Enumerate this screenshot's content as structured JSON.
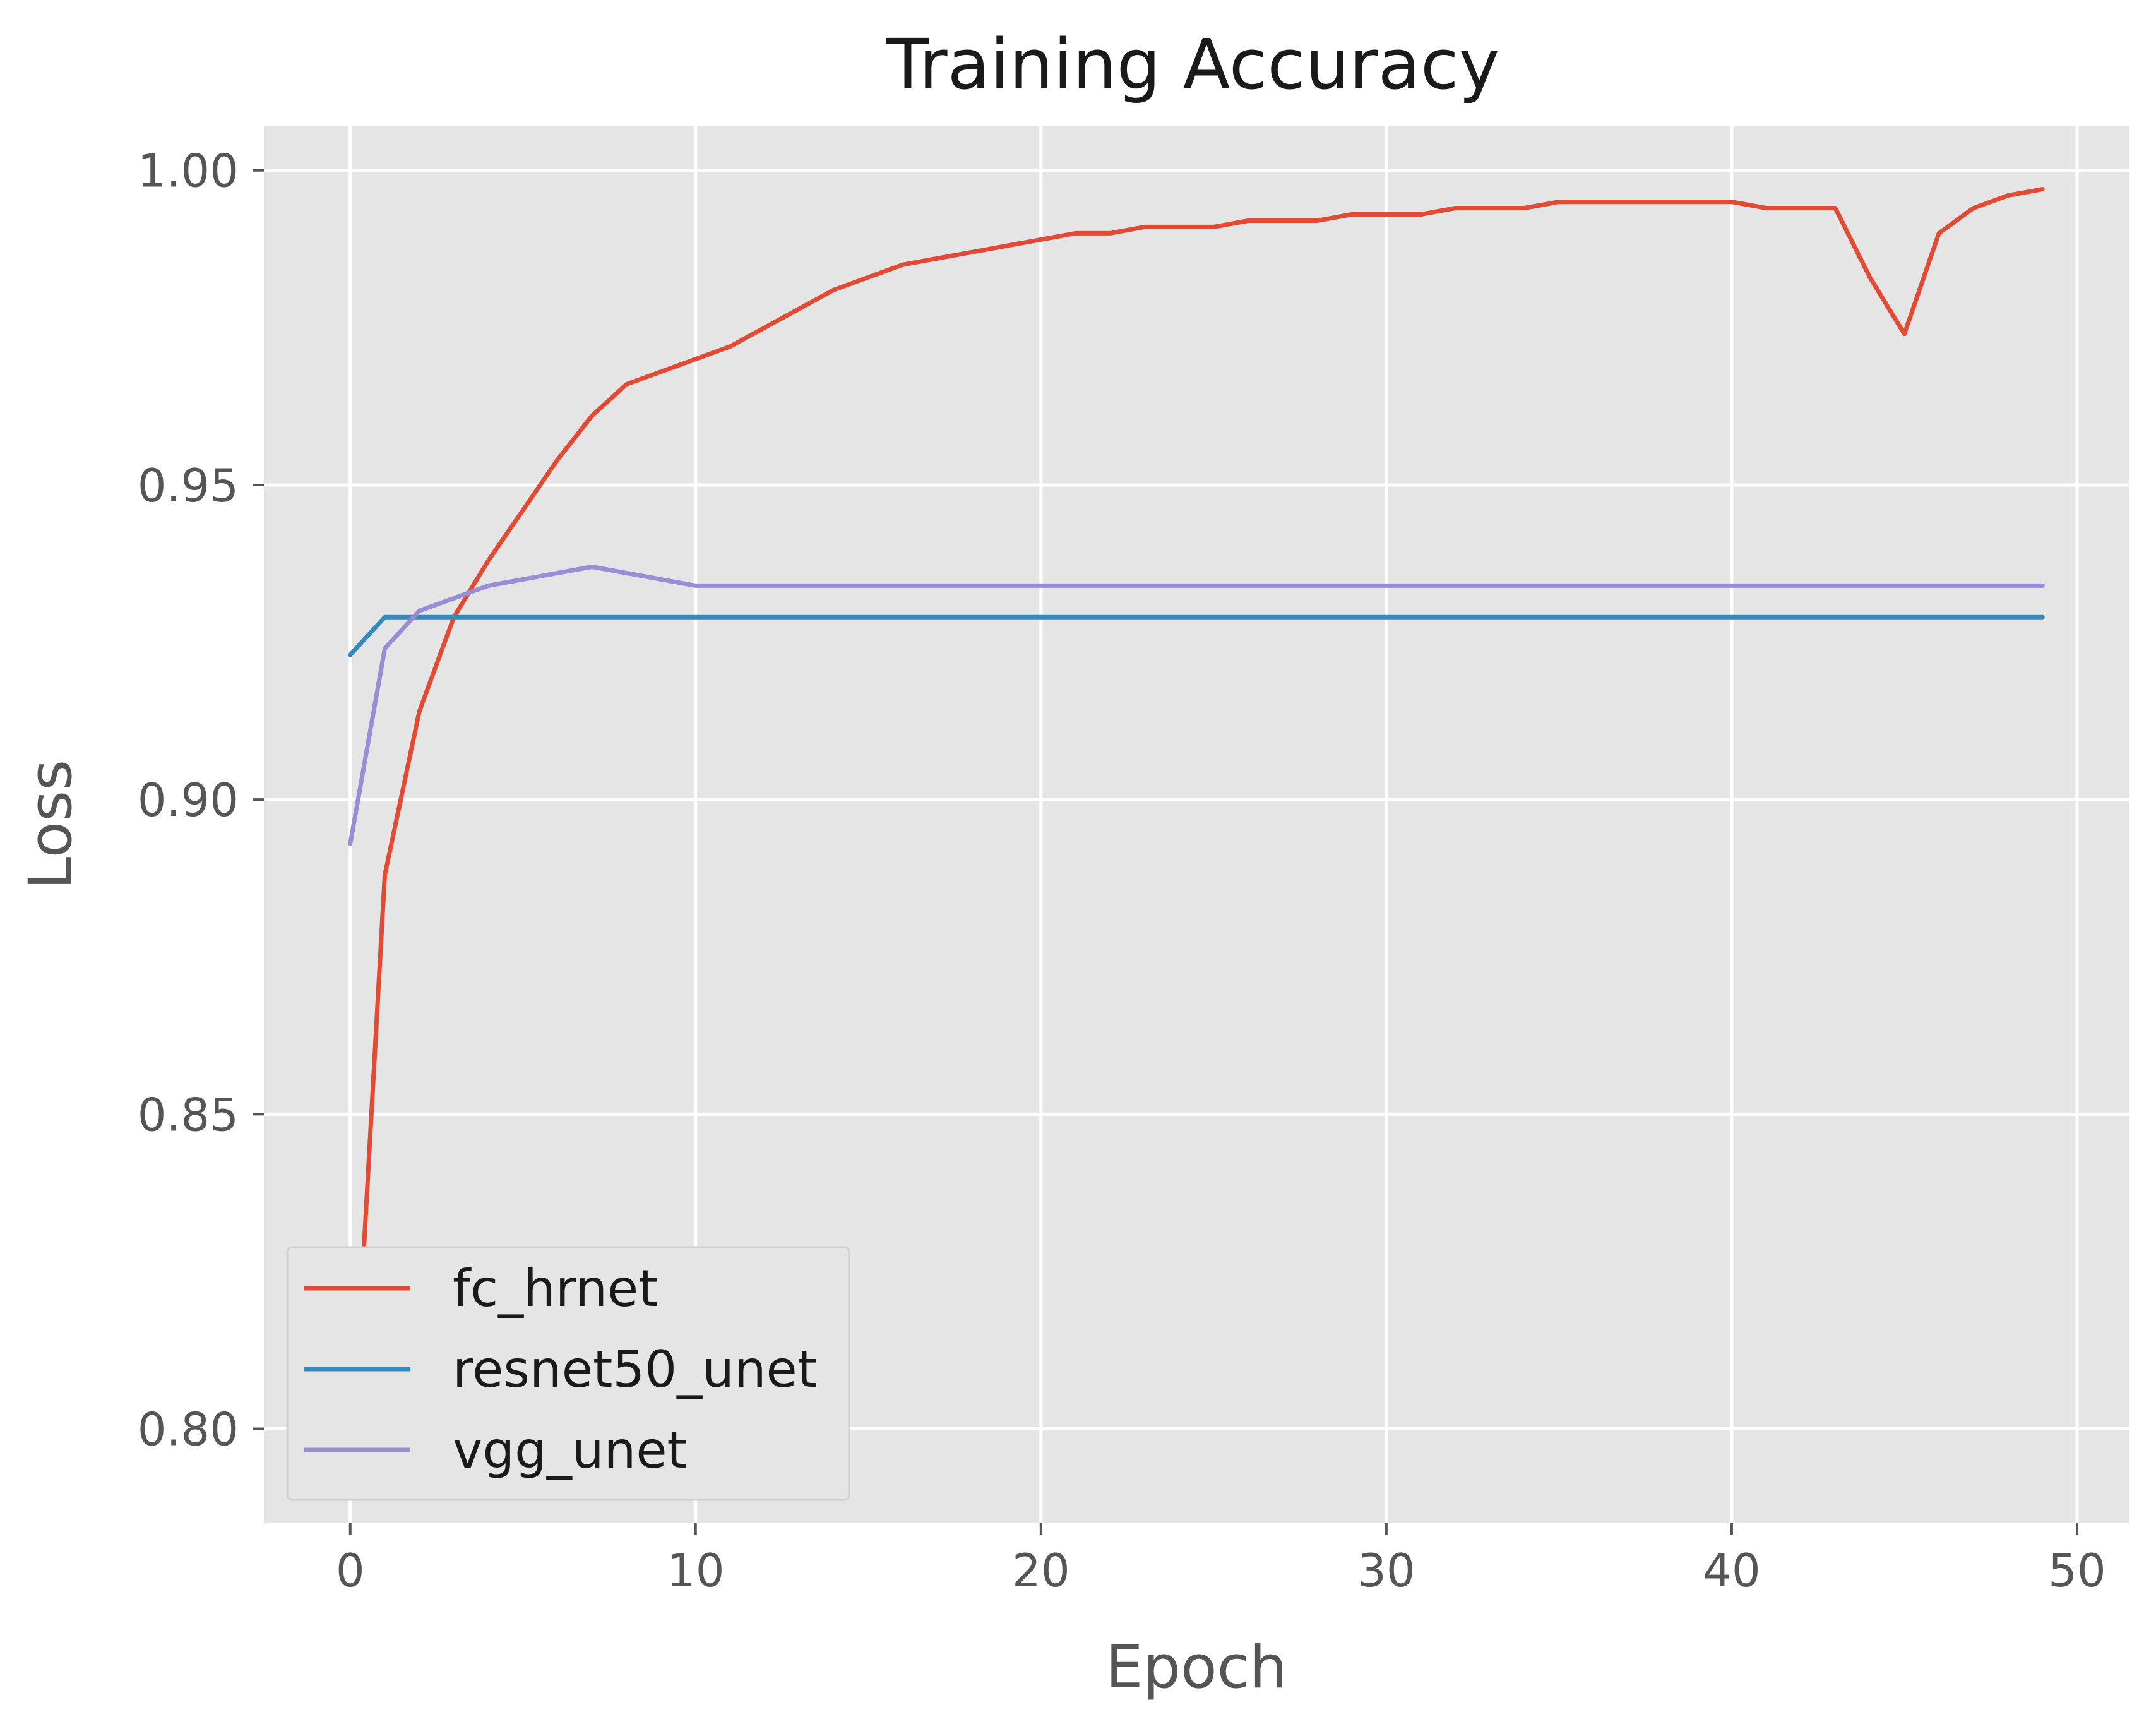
{
  "chart_data": {
    "type": "line",
    "title": "Training Accuracy",
    "xlabel": "Epoch",
    "ylabel": "Loss",
    "xlim": [
      -2.5,
      51.5
    ],
    "ylim": [
      0.785,
      1.007
    ],
    "xticks": [
      0,
      10,
      20,
      30,
      40,
      50
    ],
    "yticks": [
      0.8,
      0.85,
      0.9,
      0.95,
      1.0
    ],
    "ytick_labels": [
      "0.80",
      "0.85",
      "0.90",
      "0.95",
      "1.00"
    ],
    "grid": true,
    "legend_position": "lower-left",
    "x": [
      0,
      1,
      2,
      3,
      4,
      5,
      6,
      7,
      8,
      9,
      10,
      11,
      12,
      13,
      14,
      15,
      16,
      17,
      18,
      19,
      20,
      21,
      22,
      23,
      24,
      25,
      26,
      27,
      28,
      29,
      30,
      31,
      32,
      33,
      34,
      35,
      36,
      37,
      38,
      39,
      40,
      41,
      42,
      43,
      44,
      45,
      46,
      47,
      48,
      49
    ],
    "series": [
      {
        "name": "fc_hrnet",
        "color": "#e24a33",
        "values": [
          0.79,
          0.888,
          0.914,
          0.929,
          0.938,
          0.946,
          0.954,
          0.961,
          0.966,
          0.968,
          0.97,
          0.972,
          0.975,
          0.978,
          0.981,
          0.983,
          0.985,
          0.986,
          0.987,
          0.988,
          0.989,
          0.99,
          0.99,
          0.991,
          0.991,
          0.991,
          0.992,
          0.992,
          0.992,
          0.993,
          0.993,
          0.993,
          0.994,
          0.994,
          0.994,
          0.995,
          0.995,
          0.995,
          0.995,
          0.995,
          0.995,
          0.994,
          0.994,
          0.994,
          0.983,
          0.974,
          0.99,
          0.994,
          0.996,
          0.997
        ]
      },
      {
        "name": "resnet50_unet",
        "color": "#348abd",
        "values": [
          0.923,
          0.929,
          0.929,
          0.929,
          0.929,
          0.929,
          0.929,
          0.929,
          0.929,
          0.929,
          0.929,
          0.929,
          0.929,
          0.929,
          0.929,
          0.929,
          0.929,
          0.929,
          0.929,
          0.929,
          0.929,
          0.929,
          0.929,
          0.929,
          0.929,
          0.929,
          0.929,
          0.929,
          0.929,
          0.929,
          0.929,
          0.929,
          0.929,
          0.929,
          0.929,
          0.929,
          0.929,
          0.929,
          0.929,
          0.929,
          0.929,
          0.929,
          0.929,
          0.929,
          0.929,
          0.929,
          0.929,
          0.929,
          0.929,
          0.929
        ]
      },
      {
        "name": "vgg_unet",
        "color": "#988ed5",
        "values": [
          0.893,
          0.924,
          0.93,
          0.932,
          0.934,
          0.935,
          0.936,
          0.937,
          0.936,
          0.935,
          0.934,
          0.934,
          0.934,
          0.934,
          0.934,
          0.934,
          0.934,
          0.934,
          0.934,
          0.934,
          0.934,
          0.934,
          0.934,
          0.934,
          0.934,
          0.934,
          0.934,
          0.934,
          0.934,
          0.934,
          0.934,
          0.934,
          0.934,
          0.934,
          0.934,
          0.934,
          0.934,
          0.934,
          0.934,
          0.934,
          0.934,
          0.934,
          0.934,
          0.934,
          0.934,
          0.934,
          0.934,
          0.934,
          0.934,
          0.934
        ]
      }
    ]
  }
}
